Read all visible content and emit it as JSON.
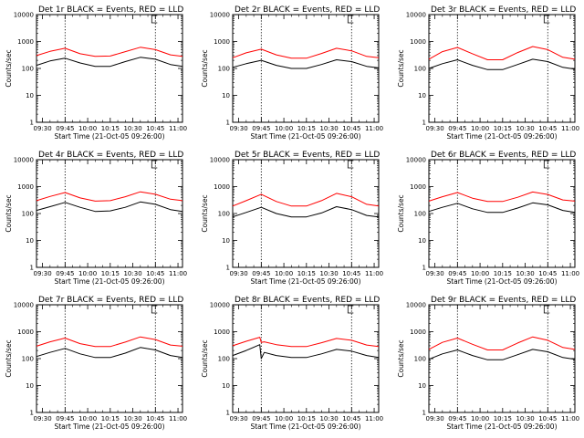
{
  "figure": {
    "time_labels": [
      "09:30",
      "09:45",
      "10:00",
      "10:15",
      "10:30",
      "10:45",
      "11:00"
    ],
    "y_tick_labels": [
      "1",
      "10",
      "100",
      "1000",
      "10000"
    ],
    "ylabel": "Counts/sec",
    "xlabel": "Start Time (21-Oct-05 09:26:00)",
    "colors": {
      "events": "#000000",
      "lld": "#ff0000",
      "axes": "#000000"
    }
  },
  "chart_data": [
    {
      "type": "line",
      "title": "Det 1r BLACK = Events, RED = LLD",
      "xlabel": "Start Time (21-Oct-05 09:26:00)",
      "ylabel": "Counts/sec",
      "ylim": [
        1,
        10000
      ],
      "y_scale": "log",
      "x": [
        "09:26",
        "09:35",
        "09:45",
        "09:55",
        "10:05",
        "10:15",
        "10:25",
        "10:35",
        "10:45",
        "10:55",
        "11:03"
      ],
      "series": [
        {
          "name": "BLACK = Events",
          "color": "#000000",
          "values": [
            130,
            190,
            240,
            160,
            120,
            120,
            180,
            260,
            220,
            140,
            120
          ]
        },
        {
          "name": "RED = LLD",
          "color": "#ff0000",
          "values": [
            300,
            430,
            560,
            350,
            280,
            290,
            420,
            610,
            500,
            320,
            280
          ]
        }
      ],
      "vlines": [
        "09:45",
        "10:45"
      ]
    },
    {
      "type": "line",
      "title": "Det 2r BLACK = Events, RED = LLD",
      "xlabel": "Start Time (21-Oct-05 09:26:00)",
      "ylabel": "Counts/sec",
      "ylim": [
        1,
        10000
      ],
      "y_scale": "log",
      "x": [
        "09:26",
        "09:35",
        "09:45",
        "09:55",
        "10:05",
        "10:15",
        "10:25",
        "10:35",
        "10:45",
        "10:55",
        "11:03"
      ],
      "series": [
        {
          "name": "BLACK = Events",
          "color": "#000000",
          "values": [
            110,
            150,
            200,
            130,
            100,
            100,
            140,
            210,
            180,
            120,
            105
          ]
        },
        {
          "name": "RED = LLD",
          "color": "#ff0000",
          "values": [
            250,
            380,
            520,
            320,
            240,
            240,
            360,
            560,
            450,
            280,
            250
          ]
        }
      ],
      "vlines": [
        "09:45",
        "10:45"
      ]
    },
    {
      "type": "line",
      "title": "Det 3r BLACK = Events, RED = LLD",
      "xlabel": "Start Time (21-Oct-05 09:26:00)",
      "ylabel": "Counts/sec",
      "ylim": [
        1,
        10000
      ],
      "y_scale": "log",
      "x": [
        "09:26",
        "09:35",
        "09:45",
        "09:55",
        "10:05",
        "10:15",
        "10:25",
        "10:35",
        "10:45",
        "10:55",
        "11:03"
      ],
      "series": [
        {
          "name": "BLACK = Events",
          "color": "#000000",
          "values": [
            100,
            150,
            210,
            130,
            90,
            90,
            140,
            220,
            180,
            110,
            95
          ]
        },
        {
          "name": "RED = LLD",
          "color": "#ff0000",
          "values": [
            220,
            420,
            600,
            350,
            210,
            210,
            390,
            650,
            500,
            260,
            220
          ]
        }
      ],
      "vlines": [
        "09:45",
        "10:45"
      ]
    },
    {
      "type": "line",
      "title": "Det 4r BLACK = Events, RED = LLD",
      "xlabel": "Start Time (21-Oct-05 09:26:00)",
      "ylabel": "Counts/sec",
      "ylim": [
        1,
        10000
      ],
      "y_scale": "log",
      "x": [
        "09:26",
        "09:35",
        "09:45",
        "09:55",
        "10:05",
        "10:15",
        "10:25",
        "10:35",
        "10:45",
        "10:55",
        "11:03"
      ],
      "series": [
        {
          "name": "BLACK = Events",
          "color": "#000000",
          "values": [
            130,
            180,
            260,
            170,
            120,
            125,
            170,
            270,
            220,
            140,
            120
          ]
        },
        {
          "name": "RED = LLD",
          "color": "#ff0000",
          "values": [
            300,
            430,
            600,
            380,
            290,
            300,
            420,
            640,
            520,
            340,
            300
          ]
        }
      ],
      "vlines": [
        "09:45",
        "10:45"
      ]
    },
    {
      "type": "line",
      "title": "Det 5r BLACK = Events, RED = LLD",
      "xlabel": "Start Time (21-Oct-05 09:26:00)",
      "ylabel": "Counts/sec",
      "ylim": [
        1,
        10000
      ],
      "y_scale": "log",
      "x": [
        "09:26",
        "09:35",
        "09:45",
        "09:55",
        "10:05",
        "10:15",
        "10:25",
        "10:35",
        "10:45",
        "10:55",
        "11:03"
      ],
      "series": [
        {
          "name": "BLACK = Events",
          "color": "#000000",
          "values": [
            75,
            110,
            170,
            100,
            75,
            75,
            105,
            180,
            140,
            85,
            75
          ]
        },
        {
          "name": "RED = LLD",
          "color": "#ff0000",
          "values": [
            190,
            300,
            520,
            280,
            190,
            190,
            300,
            560,
            420,
            220,
            190
          ]
        }
      ],
      "vlines": [
        "09:45",
        "10:45"
      ]
    },
    {
      "type": "line",
      "title": "Det 6r BLACK = Events, RED = LLD",
      "xlabel": "Start Time (21-Oct-05 09:26:00)",
      "ylabel": "Counts/sec",
      "ylim": [
        1,
        10000
      ],
      "y_scale": "log",
      "x": [
        "09:26",
        "09:35",
        "09:45",
        "09:55",
        "10:05",
        "10:15",
        "10:25",
        "10:35",
        "10:45",
        "10:55",
        "11:03"
      ],
      "series": [
        {
          "name": "BLACK = Events",
          "color": "#000000",
          "values": [
            120,
            170,
            240,
            150,
            110,
            110,
            160,
            250,
            210,
            130,
            110
          ]
        },
        {
          "name": "RED = LLD",
          "color": "#ff0000",
          "values": [
            290,
            420,
            600,
            370,
            280,
            280,
            400,
            630,
            510,
            320,
            290
          ]
        }
      ],
      "vlines": [
        "09:45",
        "10:45"
      ]
    },
    {
      "type": "line",
      "title": "Det 7r BLACK = Events, RED = LLD",
      "xlabel": "Start Time (21-Oct-05 09:26:00)",
      "ylabel": "Counts/sec",
      "ylim": [
        1,
        10000
      ],
      "y_scale": "log",
      "x": [
        "09:26",
        "09:35",
        "09:45",
        "09:55",
        "10:05",
        "10:15",
        "10:25",
        "10:35",
        "10:45",
        "10:55",
        "11:03"
      ],
      "series": [
        {
          "name": "BLACK = Events",
          "color": "#000000",
          "values": [
            120,
            170,
            240,
            150,
            110,
            110,
            160,
            260,
            210,
            130,
            110
          ]
        },
        {
          "name": "RED = LLD",
          "color": "#ff0000",
          "values": [
            290,
            420,
            580,
            360,
            280,
            280,
            410,
            640,
            510,
            320,
            290
          ]
        }
      ],
      "vlines": [
        "09:45",
        "10:45"
      ]
    },
    {
      "type": "line",
      "title": "Det 8r BLACK = Events, RED = LLD",
      "xlabel": "Start Time (21-Oct-05 09:26:00)",
      "ylabel": "Counts/sec",
      "ylim": [
        1,
        10000
      ],
      "y_scale": "log",
      "x": [
        "09:26",
        "09:35",
        "09:44",
        "09:45",
        "09:47",
        "09:55",
        "10:05",
        "10:15",
        "10:25",
        "10:35",
        "10:45",
        "10:55",
        "11:03"
      ],
      "series": [
        {
          "name": "BLACK = Events",
          "color": "#000000",
          "values": [
            130,
            200,
            330,
            100,
            170,
            130,
            110,
            110,
            150,
            220,
            190,
            130,
            110
          ]
        },
        {
          "name": "RED = LLD",
          "color": "#ff0000",
          "values": [
            300,
            440,
            620,
            400,
            420,
            330,
            280,
            280,
            390,
            560,
            480,
            320,
            280
          ]
        }
      ],
      "vlines": [
        "09:45",
        "10:45"
      ]
    },
    {
      "type": "line",
      "title": "Det 9r BLACK = Events, RED = LLD",
      "xlabel": "Start Time (21-Oct-05 09:26:00)",
      "ylabel": "Counts/sec",
      "ylim": [
        1,
        10000
      ],
      "y_scale": "log",
      "x": [
        "09:26",
        "09:35",
        "09:45",
        "09:55",
        "10:05",
        "10:15",
        "10:25",
        "10:35",
        "10:45",
        "10:55",
        "11:03"
      ],
      "series": [
        {
          "name": "BLACK = Events",
          "color": "#000000",
          "values": [
            95,
            150,
            210,
            130,
            90,
            90,
            140,
            220,
            180,
            110,
            95
          ]
        },
        {
          "name": "RED = LLD",
          "color": "#ff0000",
          "values": [
            220,
            400,
            580,
            340,
            210,
            210,
            380,
            640,
            480,
            260,
            220
          ]
        }
      ],
      "vlines": [
        "09:45",
        "10:45"
      ]
    }
  ]
}
